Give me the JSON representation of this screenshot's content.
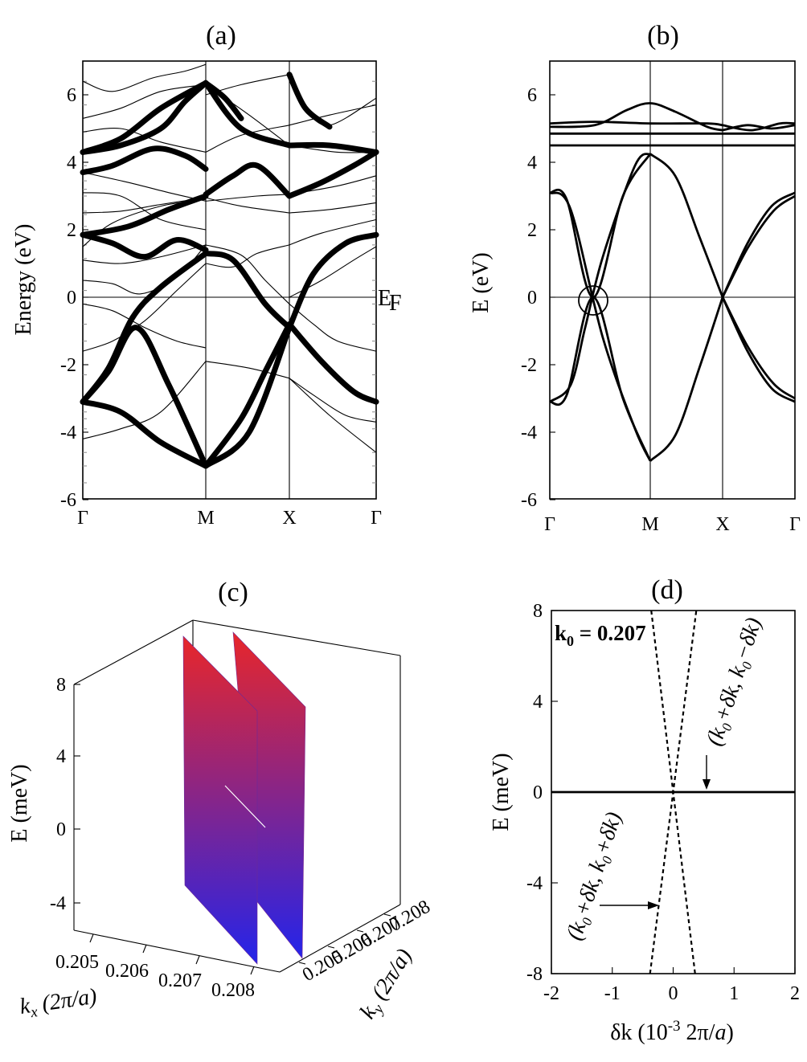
{
  "colors": {
    "surface_top": "#e8262a",
    "surface_bottom": "#2424ea"
  },
  "chart_data": [
    {
      "type": "line",
      "panel": "(a)",
      "title": "(a)",
      "xlabel": "",
      "ylabel": "Energy (eV)",
      "x_ticks": [
        "Γ",
        "M",
        "X",
        "Γ"
      ],
      "yticks": [
        "-6",
        "-4",
        "-2",
        "0",
        "2",
        "4",
        "6"
      ],
      "ylim": [
        -6,
        7
      ],
      "annotation": "E_F",
      "annotation_main": "E",
      "annotation_sub": "F",
      "note": "band structure along Γ–M–X–Γ; thick curves highlight selected bands"
    },
    {
      "type": "line",
      "panel": "(b)",
      "title": "(b)",
      "xlabel": "",
      "ylabel": "E (eV)",
      "x_ticks": [
        "Γ",
        "M",
        "X",
        "Γ"
      ],
      "yticks": [
        "-6",
        "-4",
        "-2",
        "0",
        "2",
        "4",
        "6"
      ],
      "ylim": [
        -6,
        7
      ],
      "series": [
        {
          "name": "upper flat band",
          "values": [
            4.5,
            4.5,
            4.5,
            4.5
          ]
        },
        {
          "name": "upper cone band",
          "values": [
            3.1,
            4.25,
            0.0,
            3.1
          ]
        },
        {
          "name": "lower cone band",
          "values": [
            -3.1,
            -4.85,
            0.0,
            -3.1
          ]
        },
        {
          "name": "top band",
          "values": [
            5.05,
            5.75,
            5.05,
            5.05
          ]
        }
      ],
      "annotation": "circle marks Dirac crossing at E = 0"
    },
    {
      "type": "surface3d",
      "panel": "(c)",
      "title": "(c)",
      "zlabel": "E (meV)",
      "xlabel_main": "k",
      "xlabel_sub": "x",
      "xlabel_rest": " (2π/a)",
      "ylabel_main": "k",
      "ylabel_sub": "y",
      "ylabel_rest": " (2π/a)",
      "zticks": [
        "8",
        "4",
        "0",
        "-4"
      ],
      "xticks": [
        "0.205",
        "0.206",
        "0.207",
        "0.208"
      ],
      "yticks": [
        "0.205",
        "0.206",
        "0.207",
        "0.208"
      ],
      "zlim": [
        -6,
        10
      ]
    },
    {
      "type": "line",
      "panel": "(d)",
      "title": "(d)",
      "xlabel": "δk (10⁻³ 2π/a)",
      "xlabel_main": "δk (10",
      "xlabel_exp": "-3",
      "xlabel_rest": " 2π/",
      "xlabel_ital": "a",
      "xlabel_close": ")",
      "ylabel": "E (meV)",
      "xlim": [
        -2,
        2
      ],
      "ylim": [
        -8,
        8
      ],
      "xticks": [
        "-2",
        "-1",
        "0",
        "1",
        "2"
      ],
      "yticks": [
        "-8",
        "-4",
        "0",
        "4",
        "8"
      ],
      "k0_main": "k",
      "k0_sub": "0",
      "k0_rest": " = 0.207",
      "label_minus": "(k₀+δk, k₀−δk)",
      "label_plus": "(k₀+δk, k₀+δk)",
      "series": [
        {
          "name": "(k0+δk, k0−δk)",
          "x": [
            -2,
            2
          ],
          "values": [
            0,
            0
          ]
        },
        {
          "name": "(k0+δk, k0+δk) branch 1",
          "x": [
            -0.38,
            0.38
          ],
          "values": [
            -8,
            8
          ]
        },
        {
          "name": "(k0+δk, k0+δk) branch 2",
          "x": [
            -0.36,
            0.36
          ],
          "values": [
            8,
            -8
          ]
        }
      ]
    }
  ]
}
